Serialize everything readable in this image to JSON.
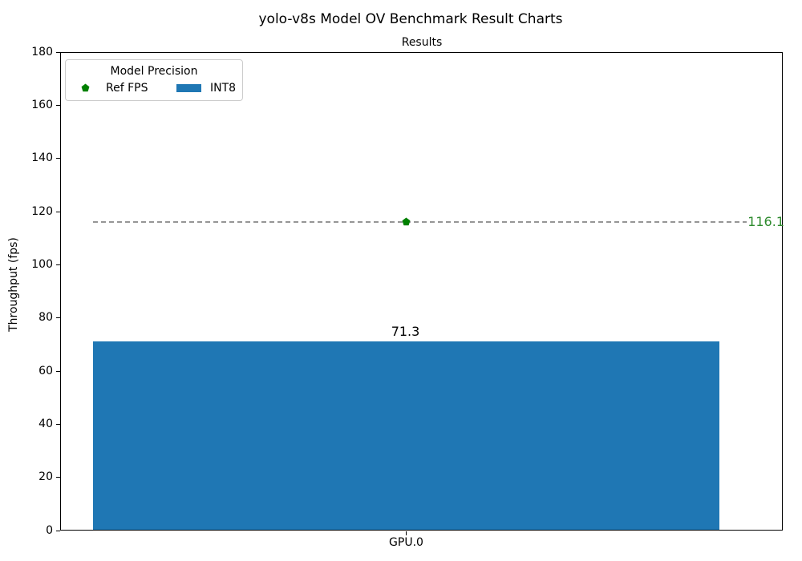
{
  "figure_title": "yolo-v8s Model OV Benchmark Result Charts",
  "chart_data": {
    "type": "bar",
    "title": "Results",
    "xlabel": "",
    "ylabel": "Throughput (fps)",
    "categories": [
      "GPU.0"
    ],
    "ylim": [
      0,
      180
    ],
    "yticks": [
      0,
      20,
      40,
      60,
      80,
      100,
      120,
      140,
      160,
      180
    ],
    "grid": false,
    "series": [
      {
        "name": "INT8",
        "type": "bar",
        "values": [
          71.3
        ],
        "labels": [
          "71.3"
        ],
        "color": "#1f77b4"
      },
      {
        "name": "Ref FPS",
        "type": "reference-line",
        "values": [
          116.1
        ],
        "labels": [
          "116.1"
        ],
        "marker": "pentagon",
        "marker_color": "#008000",
        "label_color": "#2e8b2e",
        "line_style": "dashed",
        "line_color": "#969696"
      }
    ],
    "legend": {
      "title": "Model Precision",
      "location": "upper-left",
      "entries": [
        {
          "label": "Ref FPS",
          "marker": "pentagon",
          "color": "#008000"
        },
        {
          "label": "INT8",
          "marker": "rect",
          "color": "#1f77b4"
        }
      ]
    }
  }
}
